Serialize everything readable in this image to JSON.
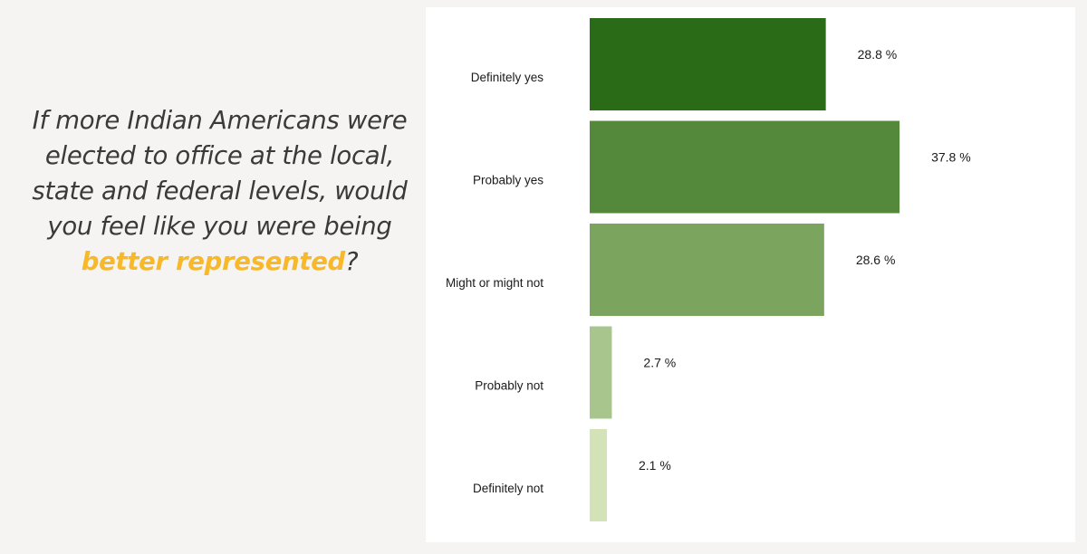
{
  "question": {
    "text_before": "If more Indian Americans were elected to office at the local, state and federal levels, would you feel like you were being ",
    "highlight": "better represented",
    "text_after": "?",
    "highlight_color": "#f7b82a"
  },
  "chart_data": {
    "type": "bar",
    "orientation": "horizontal",
    "title": "",
    "xlabel": "",
    "ylabel": "",
    "categories": [
      "Definitely yes",
      "Probably yes",
      "Might or might not",
      "Probably not",
      "Definitely not"
    ],
    "values": [
      28.8,
      37.8,
      28.6,
      2.7,
      2.1
    ],
    "value_labels": [
      "28.8 %",
      "37.8 %",
      "28.6 %",
      "2.7 %",
      "2.1 %"
    ],
    "colors": [
      "#2a6b17",
      "#54893b",
      "#7ba55f",
      "#a9c58e",
      "#d4e2b7"
    ],
    "unit": "%",
    "xlim": [
      0,
      37.8
    ],
    "grid": false,
    "legend": "none"
  }
}
